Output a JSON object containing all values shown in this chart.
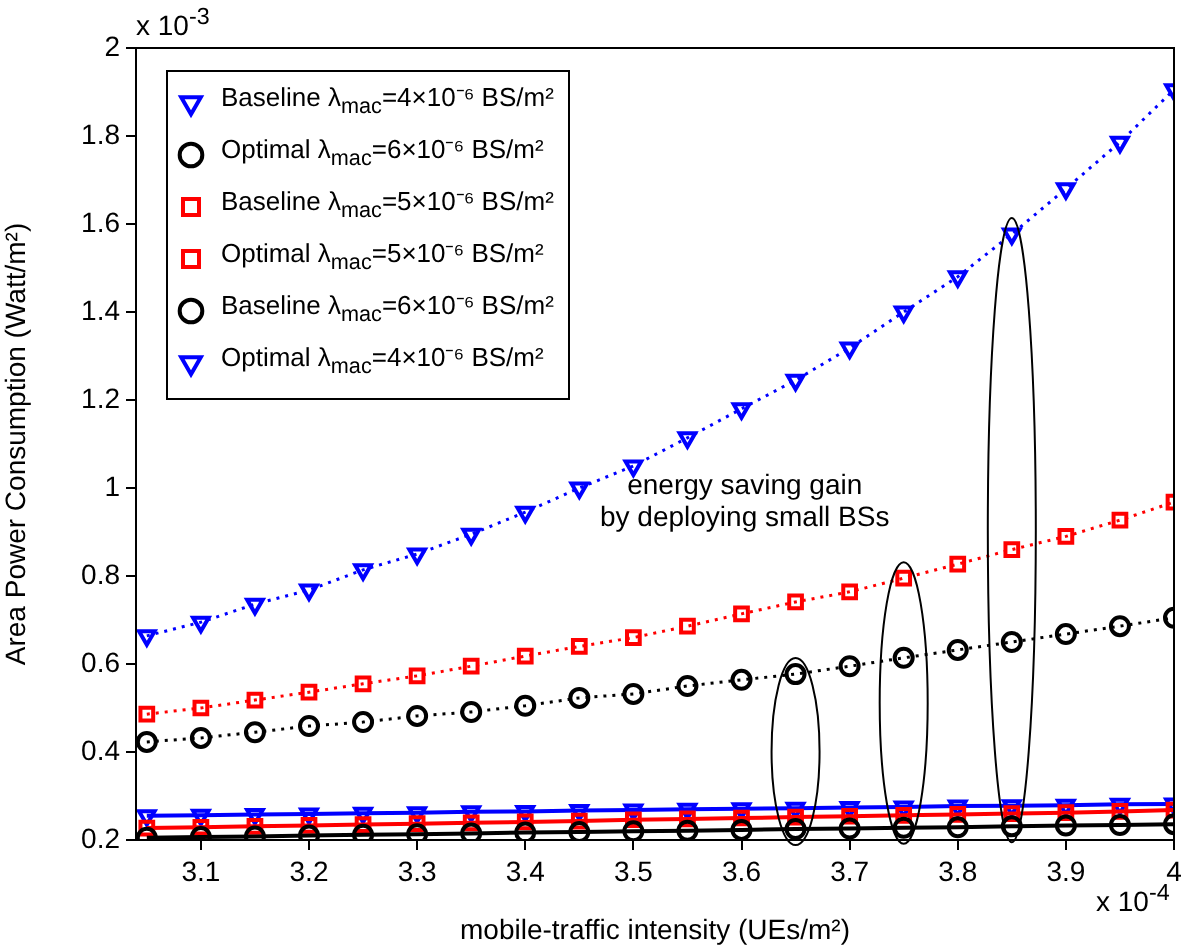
{
  "chart_data": {
    "type": "line",
    "xlabel": "mobile-traffic intensity (UEs/m²)",
    "ylabel": "Area Power Consumption (Watt/m²)",
    "x": [
      3.05,
      3.1,
      3.15,
      3.2,
      3.25,
      3.3,
      3.35,
      3.4,
      3.45,
      3.5,
      3.55,
      3.6,
      3.65,
      3.7,
      3.75,
      3.8,
      3.85,
      3.9,
      3.95,
      4.0
    ],
    "xlim": [
      3.04,
      4
    ],
    "xticks": [
      3.1,
      3.2,
      3.3,
      3.4,
      3.5,
      3.6,
      3.7,
      3.8,
      3.9,
      4
    ],
    "ylim": [
      0.2,
      2
    ],
    "yticks": [
      0.2,
      0.4,
      0.6,
      0.8,
      1,
      1.2,
      1.4,
      1.6,
      1.8,
      2
    ],
    "grid": false,
    "legend": "top left",
    "series": [
      {
        "name": "Baseline λ$_{mac}$=4×10⁻⁶ BS/m²",
        "color": "#0000ff",
        "marker": "triangle",
        "line_style": "dotted",
        "values": [
          0.664,
          0.695,
          0.736,
          0.768,
          0.814,
          0.85,
          0.895,
          0.945,
          1.0,
          1.05,
          1.114,
          1.18,
          1.245,
          1.318,
          1.4,
          1.48,
          1.577,
          1.68,
          1.786,
          1.905
        ]
      },
      {
        "name": "Optimal λ$_{mac}$=6×10⁻⁶ BS/m²",
        "color": "#000000",
        "marker": "circle",
        "line_style": "solid",
        "values": [
          0.205,
          0.207,
          0.208,
          0.21,
          0.212,
          0.213,
          0.215,
          0.217,
          0.218,
          0.22,
          0.221,
          0.223,
          0.225,
          0.226,
          0.228,
          0.229,
          0.231,
          0.233,
          0.234,
          0.236
        ]
      },
      {
        "name": "Baseline λ$_{mac}$=5×10⁻⁶ BS/m²",
        "color": "#ff0000",
        "marker": "square",
        "line_style": "dotted",
        "values": [
          0.486,
          0.5,
          0.518,
          0.536,
          0.555,
          0.573,
          0.595,
          0.618,
          0.64,
          0.66,
          0.686,
          0.714,
          0.741,
          0.764,
          0.795,
          0.827,
          0.86,
          0.89,
          0.927,
          0.968
        ]
      },
      {
        "name": "Optimal λ$_{mac}$=5×10⁻⁶ BS/m²",
        "color": "#ff0000",
        "marker": "square",
        "line_style": "solid",
        "values": [
          0.227,
          0.229,
          0.231,
          0.233,
          0.235,
          0.237,
          0.239,
          0.241,
          0.243,
          0.246,
          0.248,
          0.25,
          0.252,
          0.254,
          0.256,
          0.258,
          0.26,
          0.262,
          0.265,
          0.268
        ]
      },
      {
        "name": "Baseline λ$_{mac}$=6×10⁻⁶ BS/m²",
        "color": "#000000",
        "marker": "circle",
        "line_style": "dotted",
        "values": [
          0.423,
          0.432,
          0.445,
          0.459,
          0.468,
          0.482,
          0.491,
          0.505,
          0.523,
          0.532,
          0.55,
          0.564,
          0.577,
          0.595,
          0.614,
          0.632,
          0.65,
          0.668,
          0.686,
          0.705
        ]
      },
      {
        "name": "Optimal λ$_{mac}$=4×10⁻⁶ BS/m²",
        "color": "#0000ff",
        "marker": "triangle",
        "line_style": "solid",
        "values": [
          0.255,
          0.256,
          0.258,
          0.259,
          0.261,
          0.262,
          0.264,
          0.265,
          0.267,
          0.268,
          0.27,
          0.271,
          0.272,
          0.274,
          0.275,
          0.277,
          0.278,
          0.279,
          0.281,
          0.282
        ]
      }
    ],
    "annotations": [
      "x 10$^{-3}$",
      "x 10$^{-4}$",
      "energy saving gain\nby deploying small BSs"
    ]
  }
}
